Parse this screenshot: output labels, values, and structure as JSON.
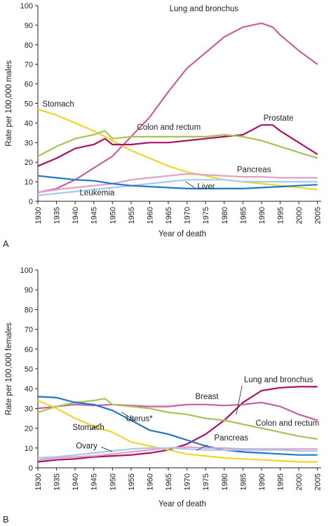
{
  "chart_data": [
    {
      "type": "line",
      "panel_label": "A",
      "xlabel": "Year of death",
      "ylabel": "Rate per 100,000 males",
      "xlim": [
        1930,
        2006
      ],
      "ylim": [
        0,
        100
      ],
      "x_ticks": [
        1930,
        1935,
        1940,
        1945,
        1950,
        1955,
        1960,
        1965,
        1970,
        1975,
        1980,
        1985,
        1990,
        1995,
        2000,
        2005
      ],
      "y_ticks": [
        0,
        10,
        20,
        30,
        40,
        50,
        60,
        70,
        80,
        90,
        100
      ],
      "grid": false,
      "legend": "direct labels",
      "series": [
        {
          "name": "Lung and bronchus",
          "color": "#c8609e",
          "label_pos": [
            1965.3,
            97.2
          ],
          "x": [
            1930,
            1935,
            1940,
            1945,
            1950,
            1955,
            1960,
            1965,
            1970,
            1975,
            1980,
            1985,
            1990,
            1993,
            1995,
            2000,
            2005
          ],
          "y": [
            4.5,
            6.5,
            11,
            17,
            23,
            33,
            43,
            56,
            68,
            76,
            84,
            89,
            91,
            89,
            85,
            77,
            70
          ]
        },
        {
          "name": "Stomach",
          "color": "#f1d628",
          "label_pos": [
            1931.2,
            48.4
          ],
          "x": [
            1930,
            1935,
            1940,
            1945,
            1950,
            1955,
            1960,
            1965,
            1970,
            1975,
            1980,
            1985,
            1990,
            1995,
            2000,
            2005
          ],
          "y": [
            47,
            44,
            40,
            36,
            31,
            26,
            22,
            18,
            15,
            13,
            11,
            10,
            9,
            8,
            7,
            6
          ]
        },
        {
          "name": "Prostate",
          "color": "#aa1060",
          "label_pos": [
            1990.5,
            41.3
          ],
          "x": [
            1930,
            1935,
            1940,
            1945,
            1948,
            1950,
            1955,
            1960,
            1965,
            1970,
            1975,
            1980,
            1985,
            1990,
            1993,
            1995,
            2000,
            2005
          ],
          "y": [
            18,
            22,
            27,
            29,
            32,
            29,
            29,
            30,
            30,
            31,
            32,
            33,
            34,
            39,
            39,
            36,
            30,
            24
          ]
        },
        {
          "name": "Colon and rectum",
          "color": "#a8c256",
          "label_pos": [
            1956.6,
            36.5
          ],
          "x": [
            1930,
            1935,
            1940,
            1945,
            1948,
            1950,
            1955,
            1960,
            1965,
            1970,
            1975,
            1980,
            1985,
            1990,
            1995,
            2000,
            2005
          ],
          "y": [
            23,
            28,
            32,
            34,
            36,
            32,
            33,
            33,
            33,
            33,
            33,
            34,
            33,
            31,
            28,
            25,
            22
          ]
        },
        {
          "name": "Pancreas",
          "color": "#e0a0c8",
          "label_pos": [
            1983.4,
            14.8
          ],
          "x": [
            1930,
            1935,
            1940,
            1945,
            1950,
            1955,
            1960,
            1965,
            1970,
            1975,
            1980,
            1985,
            1990,
            1995,
            2000,
            2005
          ],
          "y": [
            4.5,
            6,
            7,
            8,
            9,
            11,
            12,
            13,
            14,
            13.5,
            13,
            12.5,
            12.5,
            12,
            12,
            12
          ]
        },
        {
          "name": "Liver",
          "color": "#a8c8ec",
          "label_pos": [
            1972.8,
            6.2
          ],
          "x": [
            1930,
            1935,
            1940,
            1945,
            1950,
            1955,
            1960,
            1965,
            1970,
            1975,
            1980,
            1985,
            1990,
            1995,
            2000,
            2005
          ],
          "y": [
            3,
            4,
            5,
            6,
            7,
            8,
            9,
            10,
            11,
            11,
            11,
            10,
            10,
            10,
            10,
            10
          ]
        },
        {
          "name": "Leukemia",
          "color": "#1e78c8",
          "label_pos": [
            1941.2,
            3.1
          ],
          "x": [
            1930,
            1935,
            1940,
            1945,
            1950,
            1955,
            1960,
            1965,
            1970,
            1975,
            1980,
            1985,
            1990,
            1995,
            2000,
            2005
          ],
          "y": [
            13,
            12,
            11,
            10.5,
            9,
            8,
            7.5,
            7,
            6.5,
            6.5,
            6.5,
            6.5,
            7,
            7.5,
            8,
            8.5
          ]
        }
      ]
    },
    {
      "type": "line",
      "panel_label": "B",
      "xlabel": "Year of death",
      "ylabel": "Rate per 100,000 females",
      "xlim": [
        1930,
        2006
      ],
      "ylim": [
        0,
        100
      ],
      "x_ticks": [
        1930,
        1935,
        1940,
        1945,
        1950,
        1955,
        1960,
        1965,
        1970,
        1975,
        1980,
        1985,
        1990,
        1995,
        2000,
        2005
      ],
      "y_ticks": [
        0,
        10,
        20,
        30,
        40,
        50,
        60,
        70,
        80,
        90,
        100
      ],
      "grid": false,
      "legend": "direct labels",
      "series": [
        {
          "name": "Lung and bronchus",
          "color": "#aa1060",
          "label_pos": [
            1985.3,
            43.2
          ],
          "x": [
            1930,
            1935,
            1940,
            1945,
            1950,
            1955,
            1960,
            1965,
            1970,
            1975,
            1980,
            1985,
            1990,
            1995,
            2000,
            2005
          ],
          "y": [
            3,
            4,
            4.5,
            5.5,
            6,
            6.5,
            7.5,
            9,
            12,
            17,
            24,
            33,
            39,
            40.5,
            41,
            41
          ]
        },
        {
          "name": "Breast",
          "color": "#c8609e",
          "label_pos": [
            1972.2,
            34.8
          ],
          "x": [
            1930,
            1935,
            1940,
            1945,
            1950,
            1955,
            1960,
            1965,
            1970,
            1975,
            1980,
            1985,
            1990,
            1995,
            2000,
            2005
          ],
          "y": [
            30,
            31,
            32,
            31.5,
            32,
            31.5,
            31,
            31,
            32,
            32,
            31.5,
            32,
            33,
            31,
            27,
            24
          ]
        },
        {
          "name": "Colon and rectum",
          "color": "#a8c256",
          "label_pos": [
            1988.4,
            21.2
          ],
          "x": [
            1930,
            1935,
            1940,
            1945,
            1948,
            1950,
            1955,
            1960,
            1965,
            1970,
            1975,
            1980,
            1985,
            1990,
            1995,
            2000,
            2005
          ],
          "y": [
            28,
            31,
            33,
            34,
            35,
            32,
            31,
            30,
            28,
            27,
            25,
            24,
            22,
            20,
            18,
            16,
            14.5
          ]
        },
        {
          "name": "Uterus*",
          "color": "#1e78c8",
          "label_pos": [
            1953.6,
            23.6
          ],
          "x": [
            1930,
            1935,
            1940,
            1945,
            1950,
            1955,
            1960,
            1965,
            1970,
            1975,
            1980,
            1985,
            1990,
            1995,
            2000,
            2005
          ],
          "y": [
            36,
            35.5,
            33,
            32,
            29,
            24,
            19,
            17,
            14,
            11,
            9,
            8,
            7.5,
            7,
            6.5,
            6.5
          ]
        },
        {
          "name": "Stomach",
          "color": "#f1d628",
          "label_pos": [
            1939.3,
            19.1
          ],
          "x": [
            1930,
            1935,
            1940,
            1945,
            1950,
            1955,
            1960,
            1965,
            1970,
            1975,
            1980,
            1985,
            1990,
            1995,
            2000,
            2005
          ],
          "y": [
            34,
            30,
            25,
            21,
            18,
            13,
            11,
            9,
            7,
            6,
            5,
            4.5,
            4,
            3.5,
            3,
            3
          ]
        },
        {
          "name": "Pancreas",
          "color": "#e0a0c8",
          "label_pos": [
            1977.3,
            13.8
          ],
          "x": [
            1930,
            1935,
            1940,
            1945,
            1950,
            1955,
            1960,
            1965,
            1970,
            1975,
            1980,
            1985,
            1990,
            1995,
            2000,
            2005
          ],
          "y": [
            4,
            5,
            5.5,
            6,
            7,
            8,
            9,
            10,
            10.5,
            10,
            10,
            9.5,
            9.5,
            9.5,
            9.5,
            9.5
          ]
        },
        {
          "name": "Ovary",
          "color": "#a8c8ec",
          "label_pos": [
            1940.2,
            9.8
          ],
          "x": [
            1930,
            1935,
            1940,
            1945,
            1950,
            1955,
            1960,
            1965,
            1970,
            1975,
            1980,
            1985,
            1990,
            1995,
            2000,
            2005
          ],
          "y": [
            5,
            5.5,
            6.5,
            7.5,
            8.5,
            9.5,
            10,
            10,
            9.5,
            9,
            9,
            9,
            9,
            9,
            8.5,
            8.5
          ]
        }
      ]
    }
  ]
}
